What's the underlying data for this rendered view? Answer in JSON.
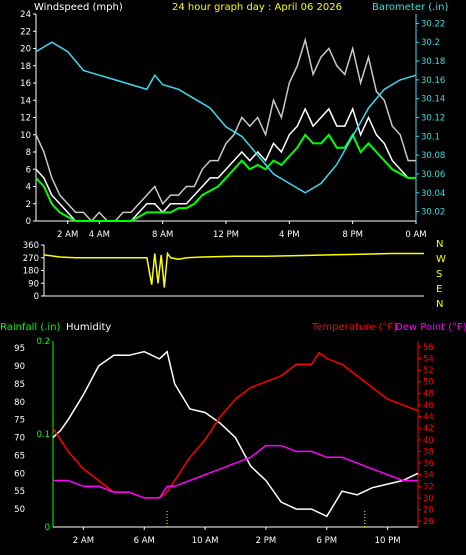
{
  "colors": {
    "wind": "#ffffff",
    "gust": "#c8c8c8",
    "avg": "#00ff00",
    "baro": "#3fd8f0",
    "dir": "#ffff00",
    "humidity": "#ffffff",
    "temperature": "#ff0000",
    "dewpoint": "#ff00ff",
    "rain": "#00ff00",
    "axis": "#ffffff",
    "title_yellow": "#ffff00",
    "baro_text": "#30e0e0",
    "rain_text": "#00ff00",
    "temp_text": "#ff0000",
    "dew_text": "#ff00ff"
  },
  "header": {
    "windspeed_label": "Windspeed (mph)",
    "title": "24 hour graph day : April 06 2026",
    "barometer_label": "Barometer (.in)"
  },
  "middle": {
    "compass": [
      "N",
      "W",
      "S",
      "E",
      "N"
    ]
  },
  "bottom_header": {
    "rainfall_label": "Rainfall (.in)",
    "humidity_label": "Humidity",
    "temperature_label": "Temperature (°F)",
    "dewpoint_label": "Dew Point (°F)"
  },
  "chart_data": [
    {
      "type": "line",
      "name": "wind",
      "x_unit": "hour",
      "x_ticks": [
        "2 AM",
        "4 AM",
        "8 AM",
        "12 PM",
        "4 PM",
        "8 PM",
        "0 AM"
      ],
      "x_tick_hours": [
        2,
        4,
        8,
        12,
        16,
        20,
        24
      ],
      "ylim_left": [
        0,
        24
      ],
      "y_ticks_left": [
        0,
        2,
        4,
        6,
        8,
        10,
        12,
        14,
        16,
        18,
        20,
        22,
        24
      ],
      "ylim_right": [
        30.01,
        30.23
      ],
      "y_ticks_right": [
        "30.02",
        "30.04",
        "30.06",
        "30.08",
        "30.1",
        "30.12",
        "30.14",
        "30.16",
        "30.18",
        "30.2",
        "30.22"
      ],
      "series": [
        {
          "role": "gust",
          "x": [
            0,
            0.5,
            1,
            1.5,
            2,
            2.5,
            3,
            3.5,
            4,
            4.5,
            5,
            5.5,
            6,
            6.5,
            7,
            7.5,
            8,
            8.5,
            9,
            9.5,
            10,
            10.5,
            11,
            11.5,
            12,
            12.5,
            13,
            13.5,
            14,
            14.5,
            15,
            15.5,
            16,
            16.5,
            17,
            17.5,
            18,
            18.5,
            19,
            19.5,
            20,
            20.5,
            21,
            21.5,
            22,
            22.5,
            23,
            23.5,
            24
          ],
          "y": [
            10,
            8,
            5,
            3,
            2,
            1,
            1,
            0,
            1,
            0,
            0,
            1,
            1,
            2,
            3,
            4,
            2,
            3,
            3,
            4,
            4,
            6,
            7,
            7,
            9,
            10,
            12,
            11,
            12,
            10,
            14,
            12,
            16,
            18,
            21,
            17,
            19,
            20,
            18,
            17,
            20,
            16,
            19,
            15,
            14,
            11,
            10,
            7,
            7
          ]
        },
        {
          "role": "wind",
          "x": [
            0,
            0.5,
            1,
            1.5,
            2,
            2.5,
            3,
            3.5,
            4,
            4.5,
            5,
            5.5,
            6,
            6.5,
            7,
            7.5,
            8,
            8.5,
            9,
            9.5,
            10,
            10.5,
            11,
            11.5,
            12,
            12.5,
            13,
            13.5,
            14,
            14.5,
            15,
            15.5,
            16,
            16.5,
            17,
            17.5,
            18,
            18.5,
            19,
            19.5,
            20,
            20.5,
            21,
            21.5,
            22,
            22.5,
            23,
            23.5,
            24
          ],
          "y": [
            6,
            5,
            3,
            2,
            1,
            0,
            0,
            0,
            0,
            0,
            0,
            0,
            0,
            1,
            2,
            2,
            1,
            2,
            2,
            2,
            3,
            4,
            5,
            5,
            6,
            7,
            8,
            7,
            8,
            7,
            9,
            8,
            10,
            11,
            13,
            11,
            12,
            13,
            11,
            11,
            13,
            10,
            12,
            10,
            9,
            7,
            6,
            5,
            5
          ]
        },
        {
          "role": "avg",
          "x": [
            0,
            0.5,
            1,
            1.5,
            2,
            2.5,
            3,
            3.5,
            4,
            4.5,
            5,
            5.5,
            6,
            6.5,
            7,
            7.5,
            8,
            8.5,
            9,
            9.5,
            10,
            10.5,
            11,
            11.5,
            12,
            12.5,
            13,
            13.5,
            14,
            14.5,
            15,
            15.5,
            16,
            16.5,
            17,
            17.5,
            18,
            18.5,
            19,
            19.5,
            20,
            20.5,
            21,
            21.5,
            22,
            22.5,
            23,
            23.5,
            24
          ],
          "y": [
            5,
            4,
            2,
            1,
            0.5,
            0,
            0,
            0,
            0,
            0,
            0,
            0,
            0,
            0.5,
            1,
            1,
            1,
            1,
            1.5,
            1.5,
            2,
            3,
            3.5,
            4,
            5,
            6,
            7,
            6,
            6.5,
            6,
            7,
            6.5,
            7.5,
            8.5,
            10,
            9,
            9,
            10,
            8.5,
            8.5,
            10,
            8,
            9,
            8,
            7,
            6,
            5.5,
            5,
            5
          ]
        },
        {
          "role": "barometer",
          "axis": "right",
          "x": [
            0,
            1,
            2,
            3,
            4,
            5,
            6,
            7,
            7.5,
            8,
            9,
            10,
            11,
            12,
            13,
            14,
            15,
            16,
            17,
            18,
            19,
            20,
            21,
            22,
            23,
            24
          ],
          "y": [
            30.19,
            30.2,
            30.19,
            30.17,
            30.165,
            30.16,
            30.155,
            30.15,
            30.165,
            30.155,
            30.15,
            30.14,
            30.13,
            30.11,
            30.1,
            30.08,
            30.06,
            30.05,
            30.04,
            30.05,
            30.07,
            30.1,
            30.13,
            30.15,
            30.16,
            30.165
          ]
        }
      ]
    },
    {
      "type": "line",
      "name": "wind_direction",
      "ylim": [
        0,
        360
      ],
      "y_ticks": [
        0,
        90,
        180,
        270,
        360
      ],
      "series": [
        {
          "role": "direction",
          "x": [
            0,
            1,
            2,
            3,
            4,
            5,
            6,
            6.5,
            6.8,
            7,
            7.2,
            7.4,
            7.6,
            7.8,
            8,
            8.5,
            9,
            10,
            12,
            14,
            16,
            18,
            20,
            22,
            24
          ],
          "y": [
            290,
            275,
            270,
            270,
            270,
            270,
            270,
            270,
            80,
            300,
            90,
            290,
            60,
            300,
            270,
            260,
            270,
            275,
            280,
            280,
            285,
            290,
            295,
            300,
            300
          ]
        }
      ]
    },
    {
      "type": "line",
      "name": "temperature_humidity",
      "x_ticks": [
        "2 AM",
        "6 AM",
        "10 AM",
        "2 PM",
        "6 PM",
        "10 PM"
      ],
      "x_tick_hours": [
        2,
        6,
        10,
        14,
        18,
        22
      ],
      "ylim_humidity": [
        45,
        97
      ],
      "y_ticks_humidity": [
        50,
        55,
        60,
        65,
        70,
        75,
        80,
        85,
        90,
        95
      ],
      "ylim_temperature": [
        25,
        57
      ],
      "y_ticks_temperature": [
        26,
        28,
        30,
        32,
        34,
        36,
        38,
        40,
        42,
        44,
        46,
        48,
        50,
        52,
        54,
        56
      ],
      "rain_ticks": [
        "0",
        "0.1",
        "0.2"
      ],
      "series": [
        {
          "role": "humidity",
          "x": [
            0,
            0.5,
            1,
            2,
            3,
            4,
            5,
            6,
            7,
            7.5,
            8,
            9,
            10,
            11,
            12,
            13,
            14,
            15,
            16,
            17,
            18,
            19,
            20,
            21,
            22,
            23,
            24
          ],
          "y": [
            70,
            72,
            75,
            82,
            90,
            93,
            93,
            94,
            92,
            94,
            85,
            78,
            77,
            74,
            70,
            62,
            58,
            52,
            50,
            50,
            48,
            55,
            54,
            56,
            57,
            58,
            60
          ]
        },
        {
          "role": "temperature",
          "x": [
            0,
            1,
            2,
            3,
            4,
            5,
            6,
            7,
            7.5,
            8,
            9,
            10,
            11,
            12,
            13,
            14,
            15,
            16,
            17,
            17.5,
            18,
            19,
            20,
            21,
            22,
            23,
            24
          ],
          "y": [
            42,
            38,
            35,
            33,
            31,
            31,
            30,
            30,
            31,
            33,
            37,
            40,
            44,
            47,
            49,
            50,
            51,
            53,
            53,
            55,
            54,
            53,
            51,
            49,
            47,
            46,
            45
          ]
        },
        {
          "role": "dewpoint",
          "x": [
            0,
            1,
            2,
            3,
            4,
            5,
            6,
            7,
            7.5,
            8,
            9,
            10,
            11,
            12,
            13,
            14,
            15,
            16,
            17,
            18,
            19,
            20,
            21,
            22,
            23,
            24
          ],
          "y": [
            33,
            33,
            32,
            32,
            31,
            31,
            30,
            30,
            32,
            32,
            33,
            34,
            35,
            36,
            37,
            39,
            39,
            38,
            38,
            37,
            37,
            36,
            35,
            34,
            33,
            33
          ]
        }
      ]
    }
  ]
}
